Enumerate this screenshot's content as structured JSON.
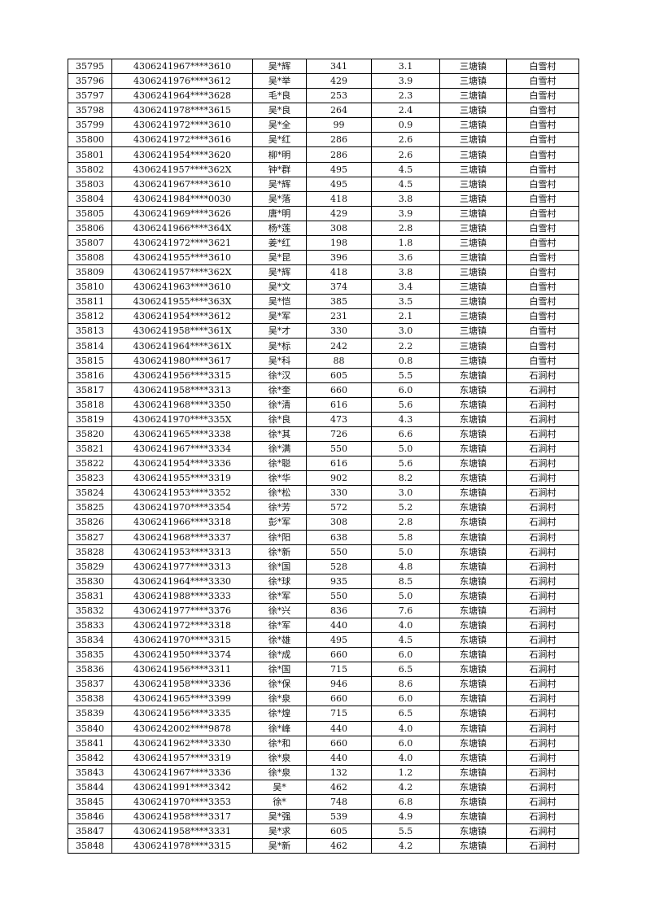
{
  "table": {
    "rows": [
      [
        "35795",
        "4306241967****3610",
        "吴*辉",
        "341",
        "3.1",
        "三塘镇",
        "白雪村"
      ],
      [
        "35796",
        "4306241976****3612",
        "吴*举",
        "429",
        "3.9",
        "三塘镇",
        "白雪村"
      ],
      [
        "35797",
        "4306241964****3628",
        "毛*良",
        "253",
        "2.3",
        "三塘镇",
        "白雪村"
      ],
      [
        "35798",
        "4306241978****3615",
        "吴*良",
        "264",
        "2.4",
        "三塘镇",
        "白雪村"
      ],
      [
        "35799",
        "4306241972****3610",
        "吴*全",
        "99",
        "0.9",
        "三塘镇",
        "白雪村"
      ],
      [
        "35800",
        "4306241972****3616",
        "吴*红",
        "286",
        "2.6",
        "三塘镇",
        "白雪村"
      ],
      [
        "35801",
        "4306241954****3620",
        "柳*明",
        "286",
        "2.6",
        "三塘镇",
        "白雪村"
      ],
      [
        "35802",
        "4306241957****362X",
        "钟*群",
        "495",
        "4.5",
        "三塘镇",
        "白雪村"
      ],
      [
        "35803",
        "4306241967****3610",
        "吴*辉",
        "495",
        "4.5",
        "三塘镇",
        "白雪村"
      ],
      [
        "35804",
        "4306241984****0030",
        "吴*落",
        "418",
        "3.8",
        "三塘镇",
        "白雪村"
      ],
      [
        "35805",
        "4306241969****3626",
        "唐*明",
        "429",
        "3.9",
        "三塘镇",
        "白雪村"
      ],
      [
        "35806",
        "4306241966****364X",
        "杨*莲",
        "308",
        "2.8",
        "三塘镇",
        "白雪村"
      ],
      [
        "35807",
        "4306241972****3621",
        "姜*红",
        "198",
        "1.8",
        "三塘镇",
        "白雪村"
      ],
      [
        "35808",
        "4306241955****3610",
        "吴*昆",
        "396",
        "3.6",
        "三塘镇",
        "白雪村"
      ],
      [
        "35809",
        "4306241957****362X",
        "吴*辉",
        "418",
        "3.8",
        "三塘镇",
        "白雪村"
      ],
      [
        "35810",
        "4306241963****3610",
        "吴*文",
        "374",
        "3.4",
        "三塘镇",
        "白雪村"
      ],
      [
        "35811",
        "4306241955****363X",
        "吴*恺",
        "385",
        "3.5",
        "三塘镇",
        "白雪村"
      ],
      [
        "35812",
        "4306241954****3612",
        "吴*军",
        "231",
        "2.1",
        "三塘镇",
        "白雪村"
      ],
      [
        "35813",
        "4306241958****361X",
        "吴*才",
        "330",
        "3.0",
        "三塘镇",
        "白雪村"
      ],
      [
        "35814",
        "4306241964****361X",
        "吴*标",
        "242",
        "2.2",
        "三塘镇",
        "白雪村"
      ],
      [
        "35815",
        "4306241980****3617",
        "吴*科",
        "88",
        "0.8",
        "三塘镇",
        "白雪村"
      ],
      [
        "35816",
        "4306241956****3315",
        "徐*汉",
        "605",
        "5.5",
        "东塘镇",
        "石涧村"
      ],
      [
        "35817",
        "4306241958****3313",
        "徐*奎",
        "660",
        "6.0",
        "东塘镇",
        "石涧村"
      ],
      [
        "35818",
        "4306241968****3350",
        "徐*清",
        "616",
        "5.6",
        "东塘镇",
        "石涧村"
      ],
      [
        "35819",
        "4306241970****335X",
        "徐*良",
        "473",
        "4.3",
        "东塘镇",
        "石涧村"
      ],
      [
        "35820",
        "4306241965****3338",
        "徐*其",
        "726",
        "6.6",
        "东塘镇",
        "石涧村"
      ],
      [
        "35821",
        "4306241967****3334",
        "徐*满",
        "550",
        "5.0",
        "东塘镇",
        "石涧村"
      ],
      [
        "35822",
        "4306241954****3336",
        "徐*聪",
        "616",
        "5.6",
        "东塘镇",
        "石涧村"
      ],
      [
        "35823",
        "4306241955****3319",
        "徐*华",
        "902",
        "8.2",
        "东塘镇",
        "石涧村"
      ],
      [
        "35824",
        "4306241953****3352",
        "徐*松",
        "330",
        "3.0",
        "东塘镇",
        "石涧村"
      ],
      [
        "35825",
        "4306241970****3354",
        "徐*芳",
        "572",
        "5.2",
        "东塘镇",
        "石涧村"
      ],
      [
        "35826",
        "4306241966****3318",
        "彭*军",
        "308",
        "2.8",
        "东塘镇",
        "石涧村"
      ],
      [
        "35827",
        "4306241968****3337",
        "徐*阳",
        "638",
        "5.8",
        "东塘镇",
        "石涧村"
      ],
      [
        "35828",
        "4306241953****3313",
        "徐*新",
        "550",
        "5.0",
        "东塘镇",
        "石涧村"
      ],
      [
        "35829",
        "4306241977****3313",
        "徐*国",
        "528",
        "4.8",
        "东塘镇",
        "石涧村"
      ],
      [
        "35830",
        "4306241964****3330",
        "徐*球",
        "935",
        "8.5",
        "东塘镇",
        "石涧村"
      ],
      [
        "35831",
        "4306241988****3333",
        "徐*军",
        "550",
        "5.0",
        "东塘镇",
        "石涧村"
      ],
      [
        "35832",
        "4306241977****3376",
        "徐*兴",
        "836",
        "7.6",
        "东塘镇",
        "石涧村"
      ],
      [
        "35833",
        "4306241972****3318",
        "徐*军",
        "440",
        "4.0",
        "东塘镇",
        "石涧村"
      ],
      [
        "35834",
        "4306241970****3315",
        "徐*雄",
        "495",
        "4.5",
        "东塘镇",
        "石涧村"
      ],
      [
        "35835",
        "4306241950****3374",
        "徐*成",
        "660",
        "6.0",
        "东塘镇",
        "石涧村"
      ],
      [
        "35836",
        "4306241956****3311",
        "徐*国",
        "715",
        "6.5",
        "东塘镇",
        "石涧村"
      ],
      [
        "35837",
        "4306241958****3336",
        "徐*保",
        "946",
        "8.6",
        "东塘镇",
        "石涧村"
      ],
      [
        "35838",
        "4306241965****3399",
        "徐*泉",
        "660",
        "6.0",
        "东塘镇",
        "石涧村"
      ],
      [
        "35839",
        "4306241956****3335",
        "徐*煌",
        "715",
        "6.5",
        "东塘镇",
        "石涧村"
      ],
      [
        "35840",
        "4306242002****9878",
        "徐*峰",
        "440",
        "4.0",
        "东塘镇",
        "石涧村"
      ],
      [
        "35841",
        "4306241962****3330",
        "徐*和",
        "660",
        "6.0",
        "东塘镇",
        "石涧村"
      ],
      [
        "35842",
        "4306241957****3319",
        "徐*泉",
        "440",
        "4.0",
        "东塘镇",
        "石涧村"
      ],
      [
        "35843",
        "4306241967****3336",
        "徐*泉",
        "132",
        "1.2",
        "东塘镇",
        "石涧村"
      ],
      [
        "35844",
        "4306241991****3342",
        "吴*",
        "462",
        "4.2",
        "东塘镇",
        "石涧村"
      ],
      [
        "35845",
        "4306241970****3353",
        "徐*",
        "748",
        "6.8",
        "东塘镇",
        "石涧村"
      ],
      [
        "35846",
        "4306241958****3317",
        "吴*强",
        "539",
        "4.9",
        "东塘镇",
        "石涧村"
      ],
      [
        "35847",
        "4306241958****3331",
        "吴*求",
        "605",
        "5.5",
        "东塘镇",
        "石涧村"
      ],
      [
        "35848",
        "4306241978****3315",
        "吴*新",
        "462",
        "4.2",
        "东塘镇",
        "石涧村"
      ]
    ]
  }
}
